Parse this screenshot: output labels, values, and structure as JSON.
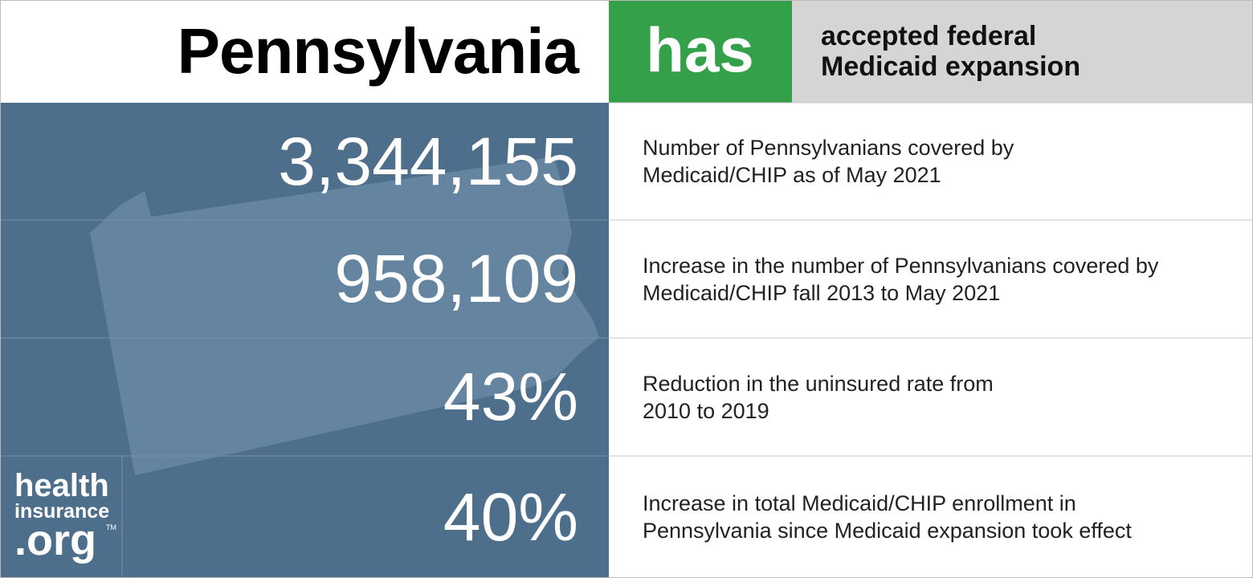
{
  "header": {
    "state": "Pennsylvania",
    "status": "has",
    "description": [
      "accepted federal",
      "Medicaid expansion"
    ]
  },
  "stats": [
    {
      "value": "3,344,155",
      "description": [
        "Number of Pennsylvanians covered by",
        "Medicaid/CHIP as of May 2021"
      ]
    },
    {
      "value": "958,109",
      "description": [
        "Increase in the number of Pennsylvanians covered by",
        "Medicaid/CHIP fall 2013 to May 2021"
      ]
    },
    {
      "value": "43%",
      "description": [
        "Reduction in the uninsured rate from",
        "2010 to 2019"
      ]
    },
    {
      "value": "40%",
      "description": [
        "Increase in total Medicaid/CHIP enrollment in",
        "Pennsylvania since Medicaid expansion took effect"
      ]
    }
  ],
  "logo": {
    "line1": "health",
    "line2": "insurance",
    "line3": ".org",
    "mark": "TM"
  }
}
